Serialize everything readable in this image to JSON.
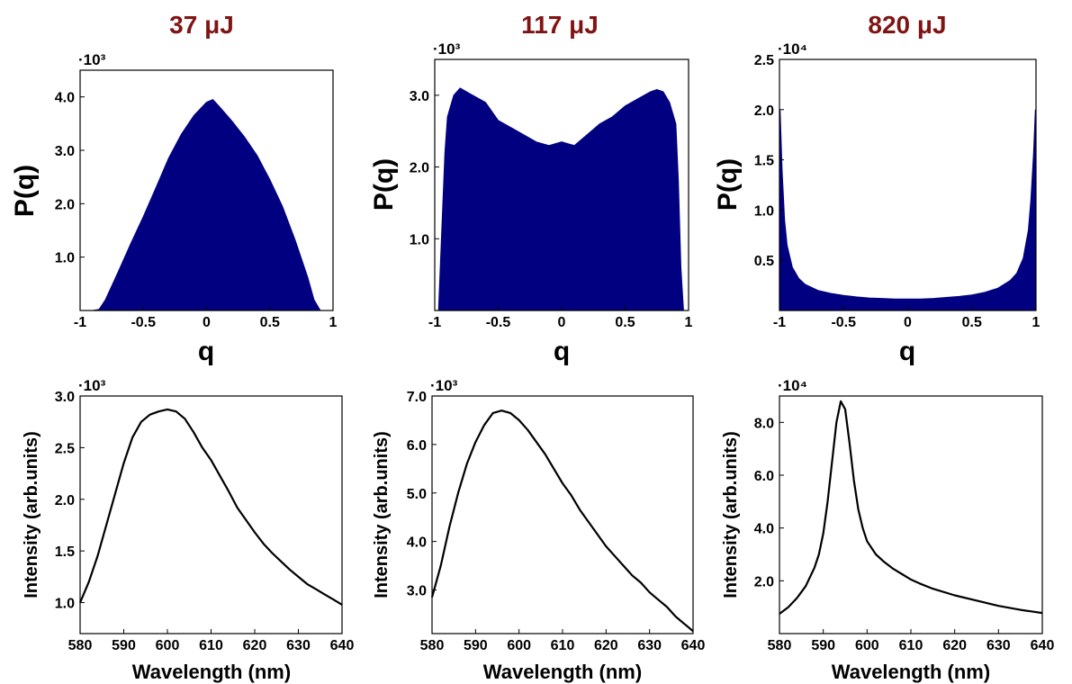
{
  "column_titles": [
    "37 μJ",
    "117 μJ",
    "820 μJ"
  ],
  "colors": {
    "histogram": "#000080",
    "spectrum": "#000000",
    "title": "#7f1414"
  },
  "chart_data": [
    {
      "type": "area",
      "title": "37 μJ",
      "xlabel": "q",
      "ylabel": "P(q)",
      "multiplier": "·10³",
      "xlim": [
        -1,
        1
      ],
      "ylim": [
        0,
        4500
      ],
      "x_ticks": [
        "-1",
        "-0.5",
        "0",
        "0.5",
        "1"
      ],
      "y_ticks": [
        {
          "value": 1000,
          "label": "1.0"
        },
        {
          "value": 2000,
          "label": "2.0"
        },
        {
          "value": 3000,
          "label": "3.0"
        },
        {
          "value": 4000,
          "label": "4.0"
        }
      ],
      "x": [
        -1.0,
        -0.9,
        -0.85,
        -0.8,
        -0.7,
        -0.6,
        -0.5,
        -0.4,
        -0.3,
        -0.2,
        -0.1,
        0.0,
        0.05,
        0.1,
        0.2,
        0.3,
        0.4,
        0.5,
        0.6,
        0.7,
        0.8,
        0.85,
        0.9,
        1.0
      ],
      "y": [
        0,
        0,
        20,
        200,
        720,
        1250,
        1760,
        2300,
        2850,
        3300,
        3650,
        3900,
        3950,
        3820,
        3550,
        3250,
        2900,
        2450,
        1950,
        1320,
        620,
        200,
        0,
        0
      ]
    },
    {
      "type": "area",
      "title": "117 μJ",
      "xlabel": "q",
      "ylabel": "P(q)",
      "multiplier": "·10³",
      "xlim": [
        -1,
        1
      ],
      "ylim": [
        0,
        3500
      ],
      "x_ticks": [
        "-1",
        "-0.5",
        "0",
        "0.5",
        "1"
      ],
      "y_ticks": [
        {
          "value": 1000,
          "label": "1.0"
        },
        {
          "value": 2000,
          "label": "2.0"
        },
        {
          "value": 3000,
          "label": "3.0"
        }
      ],
      "x": [
        -1.0,
        -0.97,
        -0.95,
        -0.92,
        -0.9,
        -0.85,
        -0.8,
        -0.7,
        -0.6,
        -0.5,
        -0.4,
        -0.3,
        -0.2,
        -0.1,
        0.0,
        0.1,
        0.2,
        0.3,
        0.4,
        0.5,
        0.6,
        0.7,
        0.75,
        0.8,
        0.85,
        0.9,
        0.92,
        0.94,
        0.96,
        1.0
      ],
      "y": [
        0,
        0,
        900,
        2200,
        2700,
        3000,
        3100,
        3000,
        2900,
        2650,
        2550,
        2450,
        2350,
        2300,
        2350,
        2300,
        2450,
        2600,
        2700,
        2850,
        2950,
        3050,
        3080,
        3050,
        2900,
        2600,
        1800,
        600,
        0,
        0
      ]
    },
    {
      "type": "area",
      "title": "820 μJ",
      "xlabel": "q",
      "ylabel": "P(q)",
      "multiplier": "·10⁴",
      "xlim": [
        -1,
        1
      ],
      "ylim": [
        0,
        25000
      ],
      "x_ticks": [
        "-1",
        "-0.5",
        "0",
        "0.5",
        "1"
      ],
      "y_ticks": [
        {
          "value": 5000,
          "label": "0.5"
        },
        {
          "value": 10000,
          "label": "1.0"
        },
        {
          "value": 15000,
          "label": "1.5"
        },
        {
          "value": 20000,
          "label": "2.0"
        },
        {
          "value": 25000,
          "label": "2.5"
        }
      ],
      "x": [
        -1.0,
        -0.995,
        -0.98,
        -0.96,
        -0.94,
        -0.9,
        -0.85,
        -0.8,
        -0.7,
        -0.6,
        -0.5,
        -0.4,
        -0.3,
        -0.2,
        -0.1,
        0.0,
        0.1,
        0.2,
        0.3,
        0.4,
        0.5,
        0.6,
        0.7,
        0.8,
        0.85,
        0.9,
        0.94,
        0.96,
        0.98,
        0.995,
        1.0
      ],
      "y": [
        0,
        20000,
        14000,
        9000,
        6500,
        4300,
        3200,
        2600,
        2000,
        1700,
        1500,
        1350,
        1250,
        1200,
        1150,
        1150,
        1150,
        1200,
        1300,
        1400,
        1550,
        1800,
        2200,
        3000,
        3700,
        5200,
        8000,
        11000,
        15500,
        20000,
        0
      ]
    },
    {
      "type": "line",
      "xlabel": "Wavelength (nm)",
      "ylabel": "Intensity (arb.units)",
      "multiplier": "·10³",
      "xlim": [
        580,
        640
      ],
      "ylim": [
        700,
        3000
      ],
      "x_ticks": [
        580,
        590,
        600,
        610,
        620,
        630,
        640
      ],
      "y_ticks": [
        {
          "value": 1000,
          "label": "1.0"
        },
        {
          "value": 1500,
          "label": "1.5"
        },
        {
          "value": 2000,
          "label": "2.0"
        },
        {
          "value": 2500,
          "label": "2.5"
        },
        {
          "value": 3000,
          "label": "3.0"
        }
      ],
      "x": [
        580,
        582,
        584,
        586,
        588,
        590,
        592,
        594,
        596,
        598,
        600,
        602,
        604,
        606,
        608,
        610,
        612,
        614,
        616,
        618,
        620,
        622,
        624,
        626,
        628,
        630,
        632,
        634,
        636,
        638,
        640
      ],
      "y": [
        1000,
        1200,
        1450,
        1750,
        2050,
        2350,
        2600,
        2750,
        2820,
        2850,
        2870,
        2850,
        2780,
        2650,
        2500,
        2380,
        2230,
        2080,
        1920,
        1800,
        1680,
        1570,
        1480,
        1400,
        1320,
        1250,
        1180,
        1130,
        1080,
        1030,
        980
      ]
    },
    {
      "type": "line",
      "xlabel": "Wavelength (nm)",
      "ylabel": "Intensity (arb.units)",
      "multiplier": "·10³",
      "xlim": [
        580,
        640
      ],
      "ylim": [
        2100,
        7000
      ],
      "x_ticks": [
        580,
        590,
        600,
        610,
        620,
        630,
        640
      ],
      "y_ticks": [
        {
          "value": 3000,
          "label": "3.0"
        },
        {
          "value": 4000,
          "label": "4.0"
        },
        {
          "value": 5000,
          "label": "5.0"
        },
        {
          "value": 6000,
          "label": "6.0"
        },
        {
          "value": 7000,
          "label": "7.0"
        }
      ],
      "x": [
        580,
        582,
        584,
        586,
        588,
        590,
        592,
        594,
        596,
        598,
        600,
        602,
        604,
        606,
        608,
        610,
        612,
        614,
        616,
        618,
        620,
        622,
        624,
        626,
        628,
        630,
        632,
        634,
        636,
        638,
        640
      ],
      "y": [
        2850,
        3500,
        4300,
        5000,
        5600,
        6050,
        6400,
        6650,
        6700,
        6650,
        6500,
        6300,
        6050,
        5800,
        5500,
        5200,
        4950,
        4650,
        4400,
        4150,
        3900,
        3700,
        3500,
        3300,
        3150,
        2950,
        2800,
        2650,
        2450,
        2300,
        2150
      ]
    },
    {
      "type": "line",
      "xlabel": "Wavelength (nm)",
      "ylabel": "Intensity (arb.units)",
      "multiplier": "·10⁴",
      "xlim": [
        580,
        640
      ],
      "ylim": [
        0,
        90000
      ],
      "x_ticks": [
        580,
        590,
        600,
        610,
        620,
        630,
        640
      ],
      "y_ticks": [
        {
          "value": 20000,
          "label": "2.0"
        },
        {
          "value": 40000,
          "label": "4.0"
        },
        {
          "value": 60000,
          "label": "6.0"
        },
        {
          "value": 80000,
          "label": "8.0"
        }
      ],
      "x": [
        580,
        582,
        584,
        586,
        588,
        589,
        590,
        591,
        592,
        593,
        594,
        595,
        596,
        597,
        598,
        599,
        600,
        602,
        604,
        606,
        608,
        610,
        612,
        615,
        620,
        625,
        630,
        635,
        640
      ],
      "y": [
        7500,
        10000,
        13500,
        18000,
        25000,
        30000,
        38000,
        50000,
        65000,
        80000,
        88000,
        85000,
        72000,
        58000,
        47000,
        40000,
        35000,
        30000,
        27000,
        24500,
        22500,
        20500,
        19000,
        17000,
        14500,
        12500,
        10500,
        9000,
        7800
      ]
    }
  ]
}
